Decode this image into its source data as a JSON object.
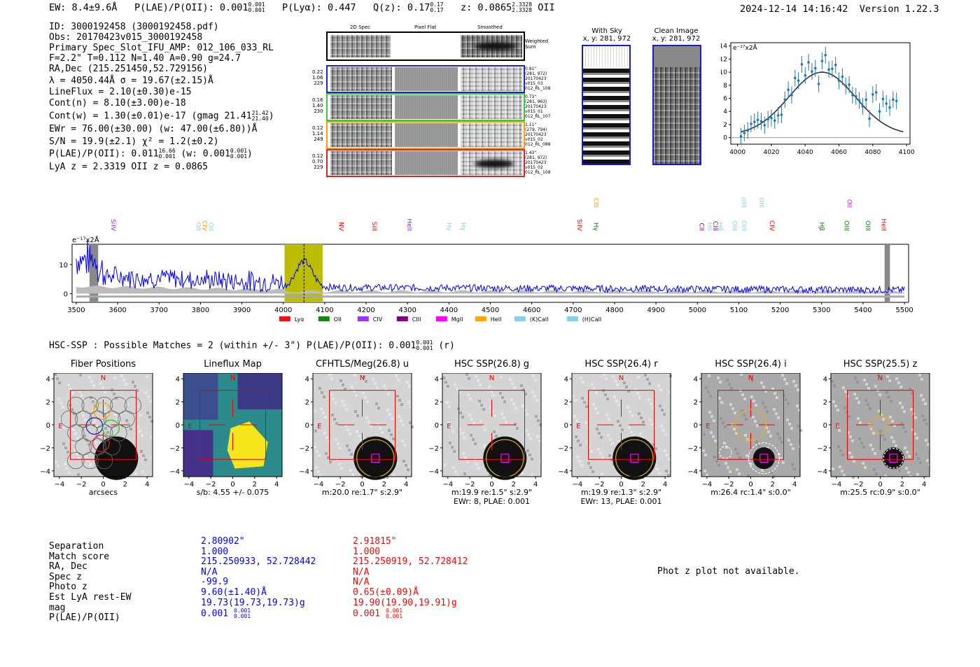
{
  "header": {
    "ew": "EW: 8.4±9.6Å",
    "plae_label": "P(LAE)/P(OII): 0.001",
    "plae_hi": "0.001",
    "plae_lo": "0.001",
    "plya": "P(Lyα): 0.447",
    "qz_label": "Q(z): 0.17",
    "qz_hi": "0.17",
    "qz_lo": "0.17",
    "z_label": "z: 0.0865",
    "z_hi": "2.3328",
    "z_lo": "2.3328",
    "z_line": "OII",
    "timestamp": "2024-12-14 14:16:42",
    "version": "Version 1.22.3"
  },
  "info": {
    "id": "ID: 3000192458 (3000192458.pdf)",
    "obs": "Obs: 20170423v015_3000192458",
    "primary": "Primary Spec_Slot_IFU_AMP: 012_106_033_RL",
    "params": "F=2.2\"  T=0.112  N=1.40  A=0.90  g=24.7",
    "radec": "RA,Dec (215.251450,52.729156)",
    "lambda": "λ = 4050.44Å  σ = 19.67(±2.15)Å",
    "lineflux": "LineFlux = 2.10(±0.30)e-15",
    "contn": "Cont(n) = 8.10(±3.00)e-18",
    "contw": "Cont(w) = 1.30(±0.01)e-17 (gmag 21.41",
    "contw_hi": "21.42",
    "contw_lo": "21.40",
    "contw_end": ")",
    "ewr": "EWr = 76.00(±30.00) (w: 47.00(±6.80))Å",
    "sn": "S/N = 19.9(±2.1)  χ² = 1.2(±0.2)",
    "plae": "P(LAE)/P(OII): 0.011",
    "plae_hi": "16.66",
    "plae_lo": "0.001",
    "plae_w": "(w: 0.001",
    "plae_w_hi": "0.001",
    "plae_w_lo": "0.001",
    "plae_end": ")",
    "lyaz": "LyA z = 2.3319  OII z = 0.0865"
  },
  "cutouts": {
    "col_2d": "2D Spec",
    "col_flat": "Pixel Flat",
    "col_smooth": "Smoothed",
    "weighted": "Weighted Sum",
    "rows": [
      {
        "n1": "0.22",
        "n2": "1.06",
        "n3": "229",
        "r1": "0.81\"",
        "r2": "(281, 972)",
        "r3": "20170423",
        "r4": "v015_03",
        "r5": "012_RL_108",
        "color": "#2222cc"
      },
      {
        "n1": "0.16",
        "n2": "1.40",
        "n3": "230",
        "r1": "0.73\"",
        "r2": "(281, 963)",
        "r3": "20170423",
        "r4": "v015_01",
        "r5": "012_RL_107",
        "color": "#33cc33"
      },
      {
        "n1": "0.12",
        "n2": "1.14",
        "n3": "249",
        "r1": "1.11\"",
        "r2": "(279, 794)",
        "r3": "20170423",
        "r4": "v015_02",
        "r5": "012_RL_088",
        "color": "#ff9900"
      },
      {
        "n1": "0.12",
        "n2": "0.70",
        "n3": "229",
        "r1": "1.43\"",
        "r2": "(281, 972)",
        "r3": "20170423",
        "r4": "v015_02",
        "r5": "012_RL_108",
        "color": "#dd2222"
      }
    ],
    "with_sky": "With Sky",
    "with_sky_xy": "x, y: 281, 972",
    "clean": "Clean Image",
    "clean_xy": "x, y: 281, 972"
  },
  "zoom_plot": {
    "ylabel": "e⁻¹⁷x2Å",
    "yticks": [
      "0",
      "2",
      "4",
      "6",
      "8",
      "10",
      "12",
      "14"
    ],
    "xticks": [
      "4000",
      "4020",
      "4040",
      "4060",
      "4080",
      "4100"
    ]
  },
  "spectrum": {
    "ylabel": "e⁻¹⁷x2Å",
    "yticks": [
      "0",
      "10"
    ],
    "xticks": [
      "3500",
      "3600",
      "3700",
      "3800",
      "3900",
      "4000",
      "4100",
      "4200",
      "4300",
      "4400",
      "4500",
      "4600",
      "4700",
      "4800",
      "4900",
      "5000",
      "5100",
      "5200",
      "5300",
      "5400",
      "5500"
    ],
    "line_labels": [
      {
        "label": "SiIV",
        "color": "#8a2be2"
      },
      {
        "label": "OII",
        "color": "#87ceeb"
      },
      {
        "label": "CIV",
        "color": "#ff9900"
      },
      {
        "label": "OII",
        "color": "#87ceeb"
      },
      {
        "label": "NV",
        "color": "#ff0000"
      },
      {
        "label": "SiII",
        "color": "#ff0000"
      },
      {
        "label": "HeII",
        "color": "#8a2be2"
      },
      {
        "label": "Hγ",
        "color": "#87ceeb"
      },
      {
        "label": "Hγ",
        "color": "#87ceeb"
      },
      {
        "label": "SiIV",
        "color": "#ff0000"
      },
      {
        "label": "Hγ",
        "color": "#008000"
      },
      {
        "label": "CIII",
        "color": "#ff9900"
      },
      {
        "label": "CII",
        "color": "#8b008b"
      },
      {
        "label": "Hδ",
        "color": "#87ceeb"
      },
      {
        "label": "CIII",
        "color": "#8b008b"
      },
      {
        "label": "Hβ",
        "color": "#87ceeb"
      },
      {
        "label": "OIII",
        "color": "#87ceeb"
      },
      {
        "label": "OIII",
        "color": "#87ceeb"
      },
      {
        "label": "OIII",
        "color": "#87ceeb"
      },
      {
        "label": "OIII",
        "color": "#87ceeb"
      },
      {
        "label": "CIV",
        "color": "#ff0000"
      },
      {
        "label": "Hβ",
        "color": "#008000"
      },
      {
        "label": "OIII",
        "color": "#008000"
      },
      {
        "label": "OII",
        "color": "#ff00ff"
      },
      {
        "label": "OIII",
        "color": "#008000"
      },
      {
        "label": "HeII",
        "color": "#ff0000"
      }
    ],
    "legend": [
      {
        "label": "Lyα",
        "color": "#ee1111"
      },
      {
        "label": "OII",
        "color": "#118811"
      },
      {
        "label": "CIV",
        "color": "#9933ff"
      },
      {
        "label": "CIII",
        "color": "#800080"
      },
      {
        "label": "MgII",
        "color": "#ff00ff"
      },
      {
        "label": "HeII",
        "color": "#ffa500"
      },
      {
        "label": "(K)CaII",
        "color": "#87ceeb"
      },
      {
        "label": "(H)CaII",
        "color": "#87ceeb"
      }
    ]
  },
  "hsc": {
    "title": "HSC-SSP : Possible Matches = 2 (within +/- 3\")  P(LAE)/P(OII): 0.001",
    "hi": "0.001",
    "lo": "0.001",
    "band": "(r)"
  },
  "stamps": [
    {
      "title": "Fiber Positions",
      "cap1": "arcsecs",
      "cap2": ""
    },
    {
      "title": "Lineflux Map",
      "cap1": "s/b: 4.55 +/- 0.075",
      "cap2": ""
    },
    {
      "title": "CFHTLS/Meg(26.8) u",
      "cap1": "m:20.0  re:1.7\"  s:2.9\"",
      "cap2": ""
    },
    {
      "title": "HSC SSP(26.8) g",
      "cap1": "m:19.9  re:1.5\"  s:2.9\"",
      "cap2": "EWr: 8, PLAE: 0.001"
    },
    {
      "title": "HSC SSP(26.4) r",
      "cap1": "m:19.9  re:1.3\"  s:2.9\"",
      "cap2": "EWr: 13, PLAE: 0.001"
    },
    {
      "title": "HSC SSP(26.4) i",
      "cap1": "m:26.4 rc:1.4\"  s:0.0\"",
      "cap2": ""
    },
    {
      "title": "HSC SSP(25.5) z",
      "cap1": "m:25.5 rc:0.9\"  s:0.0\"",
      "cap2": ""
    }
  ],
  "stamp_axis": {
    "yticks": [
      "4",
      "2",
      "0",
      "−2",
      "−4"
    ],
    "xticks": [
      "−4",
      "−2",
      "0",
      "2",
      "4"
    ],
    "north": "N",
    "east": "E"
  },
  "table": {
    "labels": [
      "Separation",
      "Match score",
      "RA, Dec",
      "Spec z",
      "Photo z",
      "Est LyA rest-EW",
      "mag",
      "P(LAE)/P(OII)"
    ],
    "col1": [
      "2.80902\"",
      "1.000",
      "215.250933, 52.728442",
      "N/A",
      "-99.9",
      "9.60(±1.40)Å",
      "19.73(19.73,19.73)g",
      "0.001"
    ],
    "col1_hi": "0.001",
    "col1_lo": "0.001",
    "col2": [
      "2.91815\"",
      "1.000",
      "215.250919, 52.728412",
      "N/A",
      "N/A",
      "0.65(±0.09)Å",
      "19.90(19.90,19.91)g",
      "0.001"
    ],
    "col2_hi": "0.001",
    "col2_lo": "0.001",
    "photz": "Phot z plot not available."
  },
  "colors": {
    "blue": "#0000ff",
    "red": "#ff0000",
    "yellow_band": "#bdbd00"
  }
}
